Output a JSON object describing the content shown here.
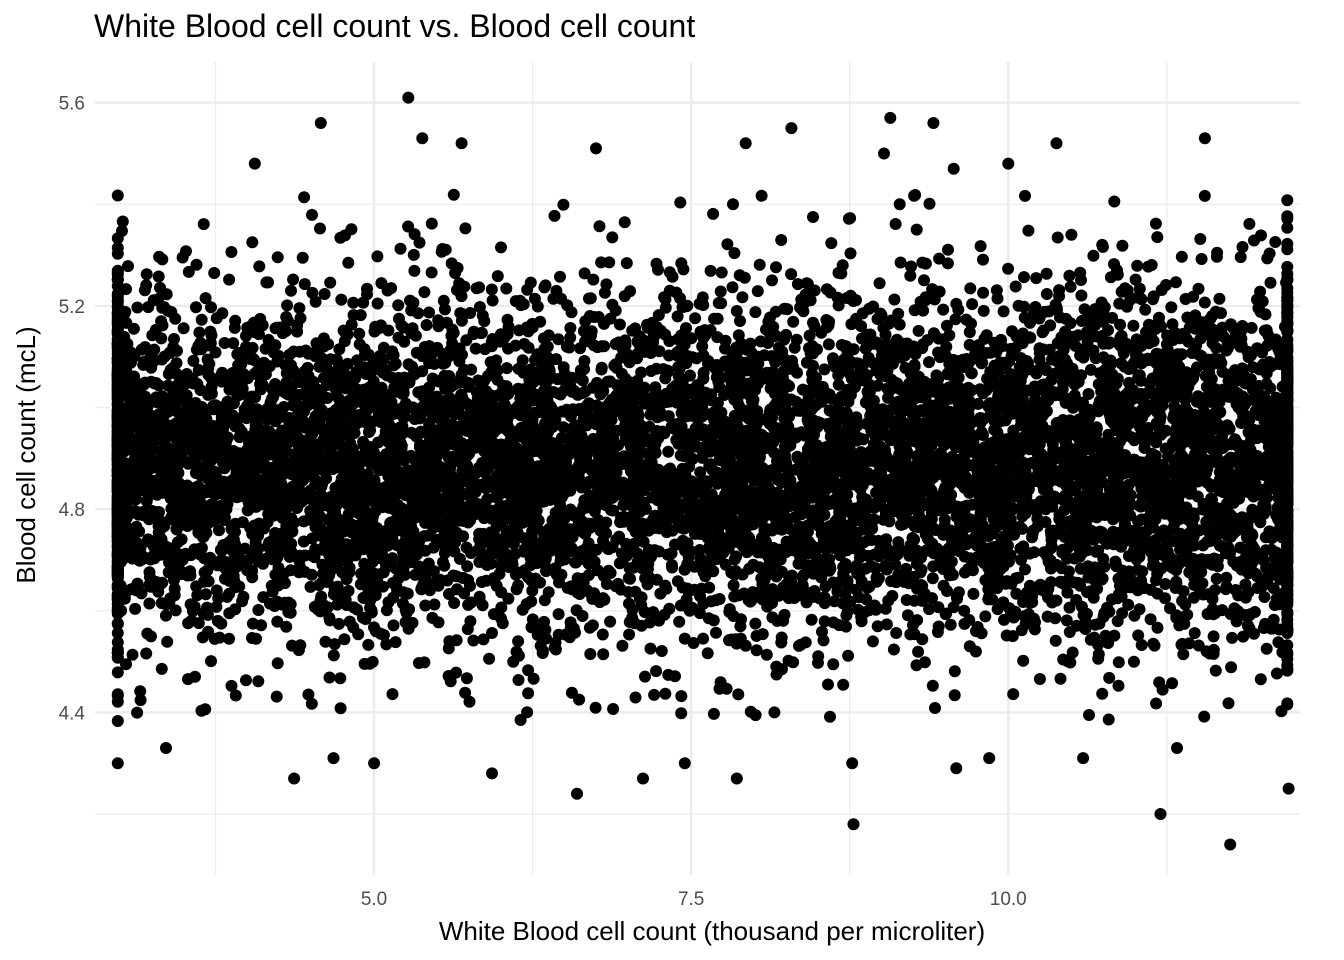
{
  "chart_data": {
    "type": "scatter",
    "title": "White Blood cell count vs. Blood cell count",
    "xlabel": "White Blood cell count (thousand per microliter)",
    "ylabel": "Blood cell count (mcL)",
    "xlim": [
      2.8,
      12.3
    ],
    "ylim": [
      4.08,
      5.68
    ],
    "x_ticks": [
      5.0,
      7.5,
      10.0
    ],
    "x_tick_labels": [
      "5.0",
      "7.5",
      "10.0"
    ],
    "x_minor_ticks": [
      3.75,
      6.25,
      8.75,
      11.25
    ],
    "y_ticks": [
      4.4,
      4.8,
      5.2,
      5.6
    ],
    "y_tick_labels": [
      "4.4",
      "4.8",
      "5.2",
      "5.6"
    ],
    "y_minor_ticks": [
      4.2,
      4.6,
      5.0,
      5.4
    ],
    "grid": true,
    "point_color": "#000000",
    "points": [
      [
        5.27,
        5.61
      ],
      [
        4.58,
        5.56
      ],
      [
        9.07,
        5.57
      ],
      [
        9.41,
        5.56
      ],
      [
        8.29,
        5.55
      ],
      [
        5.38,
        5.53
      ],
      [
        11.55,
        5.53
      ],
      [
        5.69,
        5.52
      ],
      [
        10.38,
        5.52
      ],
      [
        6.75,
        5.51
      ],
      [
        7.93,
        5.52
      ],
      [
        4.06,
        5.48
      ],
      [
        9.02,
        5.5
      ],
      [
        10.0,
        5.48
      ],
      [
        9.57,
        5.47
      ],
      [
        5.55,
        5.21
      ],
      [
        8.78,
        4.18
      ],
      [
        11.75,
        4.14
      ],
      [
        11.2,
        4.2
      ],
      [
        6.6,
        4.24
      ],
      [
        4.37,
        4.27
      ],
      [
        4.68,
        4.31
      ],
      [
        5.0,
        4.3
      ],
      [
        7.12,
        4.27
      ],
      [
        7.86,
        4.27
      ],
      [
        3.36,
        4.33
      ],
      [
        8.77,
        4.3
      ],
      [
        9.85,
        4.31
      ],
      [
        10.59,
        4.31
      ],
      [
        11.33,
        4.33
      ],
      [
        2.98,
        4.3
      ],
      [
        12.21,
        4.25
      ],
      [
        5.93,
        4.28
      ],
      [
        7.45,
        4.3
      ],
      [
        9.59,
        4.29
      ]
    ],
    "generated_cloud": {
      "count": 9000,
      "x_range": [
        3.0,
        12.2
      ],
      "y_center": 4.89,
      "y_sd": 0.17,
      "edge_columns": [
        2.98,
        12.2
      ]
    }
  }
}
